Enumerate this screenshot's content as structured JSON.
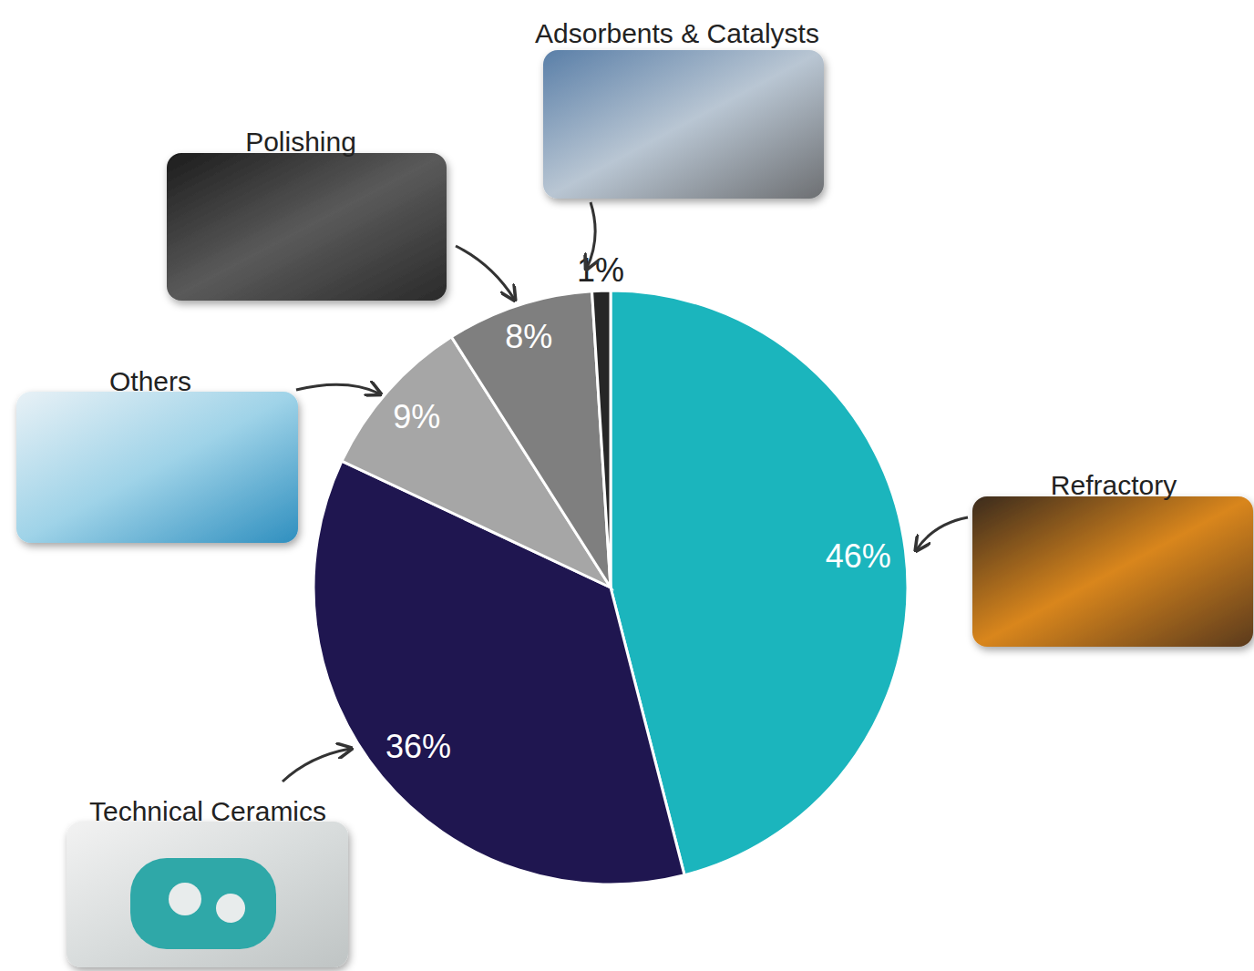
{
  "chart_data": {
    "type": "pie",
    "categories": [
      "Refractory",
      "Technical Ceramics",
      "Others",
      "Polishing",
      "Adsorbents & Catalysts"
    ],
    "values": [
      46,
      36,
      9,
      8,
      1
    ],
    "value_labels": [
      "46%",
      "36%",
      "9%",
      "8%",
      "1%"
    ],
    "colors": [
      "#1bb5bd",
      "#1f1650",
      "#a6a6a6",
      "#7f7f7f",
      "#262626"
    ],
    "data_labels": true
  }
}
